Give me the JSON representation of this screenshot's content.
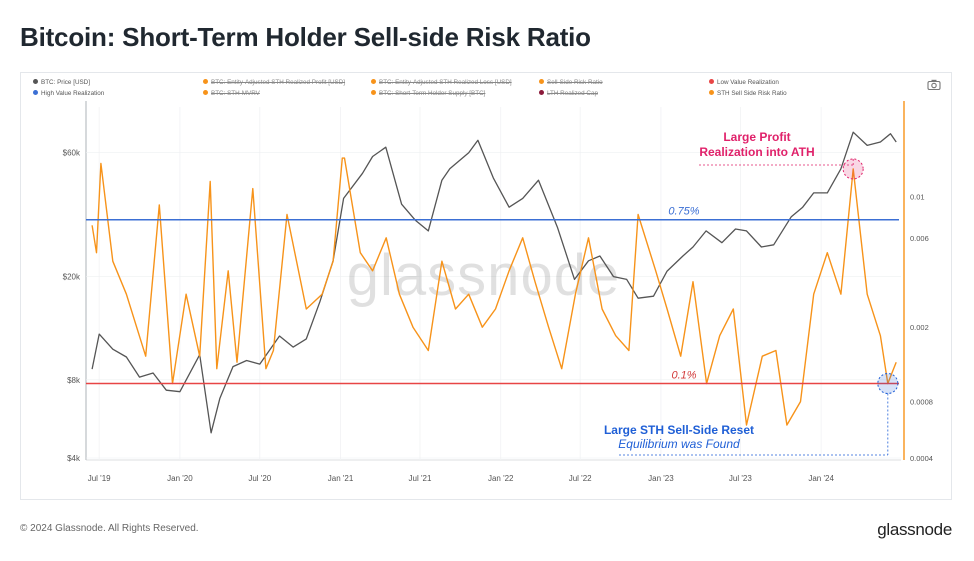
{
  "title": "Bitcoin: Short-Term Holder Sell-side Risk Ratio",
  "footer": {
    "copyright": "© 2024 Glassnode. All Rights Reserved.",
    "logo": "glassnode"
  },
  "watermark": "glassnode",
  "legend": [
    {
      "label": "BTC: Price [USD]",
      "color": "#555555",
      "enabled": true
    },
    {
      "label": "BTC: Entity-Adjusted STH Realized Profit [USD]",
      "color": "#f7931a",
      "enabled": false
    },
    {
      "label": "BTC: Entity-Adjusted STH Realized Loss [USD]",
      "color": "#f7931a",
      "enabled": false
    },
    {
      "label": "Sell-Side Risk Ratio",
      "color": "#f7931a",
      "enabled": false
    },
    {
      "label": "Low Value Realization",
      "color": "#e84545",
      "enabled": true
    },
    {
      "label": "High Value Realization",
      "color": "#3b6fd4",
      "enabled": true
    },
    {
      "label": "BTC: STH-MVRV",
      "color": "#f7931a",
      "enabled": false
    },
    {
      "label": "BTC: Short-Term Holder Supply [BTC]",
      "color": "#f7931a",
      "enabled": false
    },
    {
      "label": "LTH Realized Cap",
      "color": "#8b1a3a",
      "enabled": false
    },
    {
      "label": "STH Sell Side Risk Ratio",
      "color": "#f7931a",
      "enabled": true
    }
  ],
  "annotations": {
    "top_line1": "Large Profit",
    "top_line2": "Realization into ATH",
    "bottom_line1": "Large STH Sell-Side Reset",
    "bottom_line2": "Equilibrium was Found",
    "high_threshold": "0.75%",
    "low_threshold": "0.1%"
  },
  "colors": {
    "price": "#555555",
    "ratio": "#f7931a",
    "high": "#3b6fd4",
    "low": "#e84545",
    "accent_pink": "#e0216a",
    "accent_blue": "#1f5fd6"
  },
  "chart_data": {
    "type": "line",
    "title": "Bitcoin: Short-Term Holder Sell-side Risk Ratio",
    "x_ticks": [
      "Jul '19",
      "Jan '20",
      "Jul '20",
      "Jan '21",
      "Jul '21",
      "Jan '22",
      "Jul '22",
      "Jan '23",
      "Jul '23",
      "Jan '24"
    ],
    "y_left": {
      "scale": "log",
      "ticks": [
        "$4k",
        "$8k",
        "$20k",
        "$60k"
      ],
      "range": [
        4000,
        90000
      ]
    },
    "y_right": {
      "scale": "log",
      "ticks": [
        "0.0004",
        "0.0008",
        "0.002",
        "0.006",
        "0.01"
      ],
      "range": [
        0.0004,
        0.03
      ]
    },
    "thresholds": {
      "high": 0.0075,
      "low": 0.001
    },
    "series": [
      {
        "name": "BTC: Price [USD]",
        "axis": "left",
        "x": [
          "2019-06-15",
          "2019-07-01",
          "2019-08-01",
          "2019-09-01",
          "2019-10-01",
          "2019-11-01",
          "2019-12-01",
          "2020-01-01",
          "2020-02-15",
          "2020-03-12",
          "2020-04-01",
          "2020-05-01",
          "2020-06-01",
          "2020-07-01",
          "2020-08-15",
          "2020-09-15",
          "2020-10-15",
          "2020-11-15",
          "2020-12-15",
          "2021-01-08",
          "2021-02-20",
          "2021-03-15",
          "2021-04-14",
          "2021-05-20",
          "2021-06-20",
          "2021-07-20",
          "2021-08-20",
          "2021-09-07",
          "2021-10-20",
          "2021-11-10",
          "2021-12-15",
          "2022-01-20",
          "2022-02-20",
          "2022-03-28",
          "2022-05-10",
          "2022-06-18",
          "2022-07-20",
          "2022-08-15",
          "2022-09-15",
          "2022-10-15",
          "2022-11-10",
          "2022-12-15",
          "2023-01-15",
          "2023-02-20",
          "2023-03-15",
          "2023-04-14",
          "2023-05-20",
          "2023-06-20",
          "2023-07-15",
          "2023-08-18",
          "2023-09-15",
          "2023-10-25",
          "2023-11-20",
          "2023-12-15",
          "2024-01-15",
          "2024-02-15",
          "2024-03-14",
          "2024-04-15",
          "2024-05-15",
          "2024-06-07",
          "2024-06-20"
        ],
        "y": [
          8800,
          12000,
          10500,
          9800,
          8200,
          8500,
          7300,
          7200,
          10000,
          5000,
          6800,
          9000,
          9500,
          9200,
          11800,
          10700,
          11500,
          16000,
          23000,
          40000,
          50000,
          58000,
          63000,
          38000,
          33000,
          30000,
          47000,
          52000,
          60000,
          67000,
          48000,
          37000,
          40000,
          47000,
          31000,
          19500,
          23000,
          24000,
          20000,
          19500,
          16500,
          16800,
          21000,
          24000,
          26000,
          30000,
          27000,
          30500,
          30000,
          26000,
          26500,
          34000,
          37000,
          42000,
          42000,
          52000,
          72000,
          64000,
          66000,
          71000,
          66000
        ]
      },
      {
        "name": "STH Sell Side Risk Ratio",
        "axis": "right",
        "x": [
          "2019-06-15",
          "2019-06-25",
          "2019-07-05",
          "2019-08-01",
          "2019-09-01",
          "2019-10-15",
          "2019-11-15",
          "2019-12-15",
          "2020-01-15",
          "2020-02-15",
          "2020-03-10",
          "2020-03-25",
          "2020-04-20",
          "2020-05-10",
          "2020-06-15",
          "2020-07-15",
          "2020-08-01",
          "2020-09-01",
          "2020-10-15",
          "2020-11-20",
          "2020-12-15",
          "2021-01-05",
          "2021-01-10",
          "2021-02-15",
          "2021-03-15",
          "2021-04-15",
          "2021-05-15",
          "2021-06-15",
          "2021-07-20",
          "2021-08-20",
          "2021-09-20",
          "2021-10-20",
          "2021-11-20",
          "2021-12-20",
          "2022-01-20",
          "2022-02-20",
          "2022-03-20",
          "2022-04-20",
          "2022-05-20",
          "2022-06-20",
          "2022-07-20",
          "2022-08-20",
          "2022-09-20",
          "2022-10-20",
          "2022-11-10",
          "2022-12-20",
          "2023-01-15",
          "2023-02-15",
          "2023-03-15",
          "2023-04-15",
          "2023-05-15",
          "2023-06-15",
          "2023-07-15",
          "2023-08-20",
          "2023-09-20",
          "2023-10-15",
          "2023-11-15",
          "2023-12-15",
          "2024-01-15",
          "2024-02-15",
          "2024-03-14",
          "2024-04-15",
          "2024-05-15",
          "2024-06-01",
          "2024-06-20"
        ],
        "y": [
          0.007,
          0.005,
          0.015,
          0.0045,
          0.003,
          0.0014,
          0.009,
          0.001,
          0.003,
          0.0014,
          0.012,
          0.0012,
          0.004,
          0.0013,
          0.011,
          0.0012,
          0.0015,
          0.008,
          0.0025,
          0.003,
          0.0045,
          0.016,
          0.016,
          0.005,
          0.004,
          0.006,
          0.003,
          0.002,
          0.0015,
          0.0045,
          0.0025,
          0.003,
          0.002,
          0.0025,
          0.004,
          0.006,
          0.0035,
          0.002,
          0.0012,
          0.003,
          0.006,
          0.0025,
          0.0018,
          0.0015,
          0.008,
          0.004,
          0.0025,
          0.0014,
          0.0035,
          0.001,
          0.0018,
          0.0025,
          0.0006,
          0.0014,
          0.0015,
          0.0006,
          0.0008,
          0.003,
          0.005,
          0.003,
          0.014,
          0.003,
          0.0018,
          0.001,
          0.0013
        ]
      }
    ]
  }
}
